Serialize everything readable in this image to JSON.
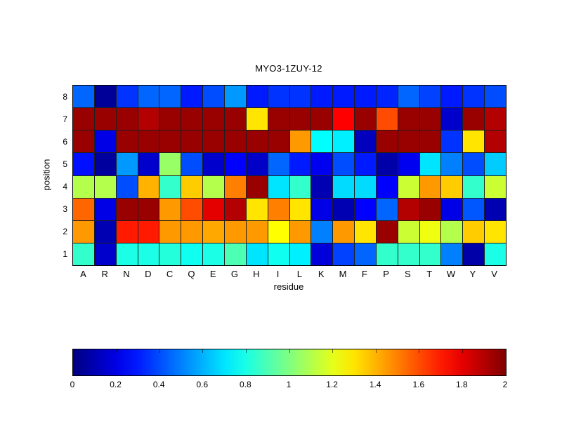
{
  "chart_data": {
    "type": "heatmap",
    "title": "MYO3-1ZUY-12",
    "xlabel": "residue",
    "ylabel": "position",
    "x_categories": [
      "A",
      "R",
      "N",
      "D",
      "C",
      "Q",
      "E",
      "G",
      "H",
      "I",
      "L",
      "K",
      "M",
      "F",
      "P",
      "S",
      "T",
      "W",
      "Y",
      "V"
    ],
    "y_categories_top_to_bottom": [
      "8",
      "7",
      "6",
      "5",
      "4",
      "3",
      "2",
      "1"
    ],
    "colormap": "jet",
    "value_range": [
      0,
      2
    ],
    "rows_top_to_bottom": [
      [
        0.45,
        0.05,
        0.35,
        0.45,
        0.45,
        0.3,
        0.4,
        0.55,
        0.3,
        0.35,
        0.35,
        0.3,
        0.3,
        0.3,
        0.32,
        0.45,
        0.38,
        0.3,
        0.35,
        0.4
      ],
      [
        1.95,
        1.95,
        1.95,
        1.9,
        1.95,
        1.95,
        1.95,
        1.95,
        1.3,
        1.95,
        1.95,
        1.95,
        1.75,
        1.95,
        1.6,
        1.95,
        1.95,
        0.15,
        1.95,
        1.9
      ],
      [
        1.95,
        0.2,
        1.95,
        1.95,
        1.95,
        1.95,
        1.95,
        1.95,
        1.95,
        1.95,
        1.45,
        0.75,
        0.72,
        0.12,
        1.95,
        1.95,
        1.95,
        0.35,
        1.3,
        1.9
      ],
      [
        0.28,
        0.06,
        0.55,
        0.15,
        1.05,
        0.4,
        0.15,
        0.25,
        0.14,
        0.45,
        0.3,
        0.22,
        0.4,
        0.3,
        0.08,
        0.22,
        0.7,
        0.5,
        0.4,
        0.65
      ],
      [
        1.1,
        1.1,
        0.4,
        1.4,
        0.85,
        1.35,
        1.1,
        1.5,
        1.95,
        0.7,
        0.85,
        0.1,
        0.68,
        0.68,
        0.25,
        1.15,
        1.45,
        1.35,
        0.85,
        1.15
      ],
      [
        1.55,
        0.2,
        1.95,
        1.95,
        1.45,
        1.6,
        1.8,
        1.9,
        1.3,
        1.5,
        1.3,
        0.2,
        0.1,
        0.25,
        0.45,
        1.9,
        1.95,
        0.2,
        0.42,
        0.1
      ],
      [
        1.45,
        0.1,
        1.7,
        1.7,
        1.45,
        1.45,
        1.42,
        1.45,
        1.45,
        1.25,
        1.45,
        0.5,
        1.45,
        1.3,
        1.95,
        1.15,
        1.22,
        1.1,
        1.35,
        1.3
      ],
      [
        0.85,
        0.15,
        0.8,
        0.8,
        0.82,
        0.78,
        0.8,
        0.9,
        0.7,
        0.78,
        0.72,
        0.18,
        0.38,
        0.45,
        0.85,
        0.85,
        0.85,
        0.5,
        0.08,
        0.8
      ]
    ],
    "colorbar_ticks": [
      "0",
      "0.2",
      "0.4",
      "0.6",
      "0.8",
      "1",
      "1.2",
      "1.4",
      "1.6",
      "1.8",
      "2"
    ],
    "colorbar_orientation": "horizontal",
    "grid": "on",
    "colors": {
      "min_color": "#000080",
      "max_color": "#800000",
      "grid_line": "#1f1f1f",
      "axis_outline": "#000000"
    }
  }
}
